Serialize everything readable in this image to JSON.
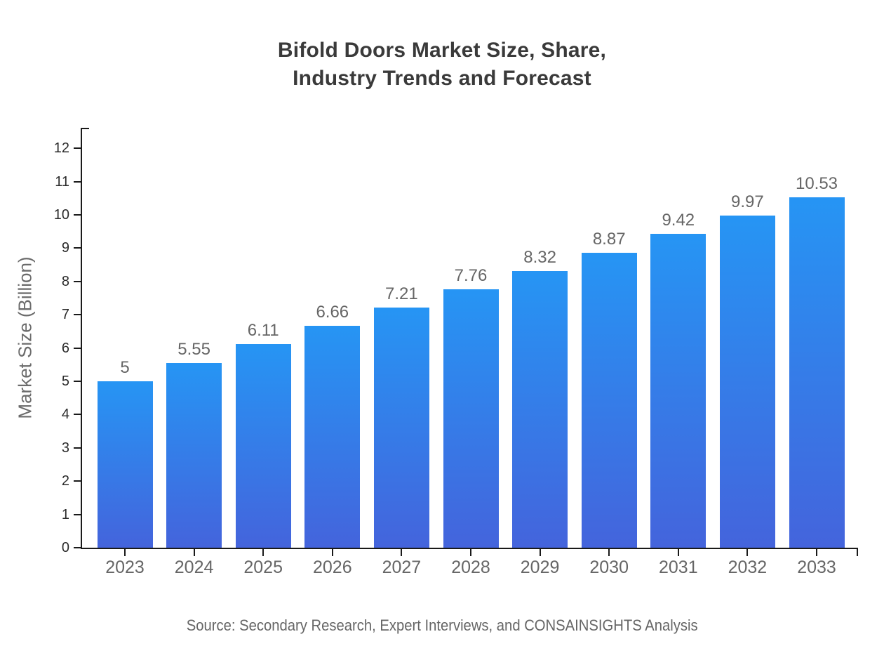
{
  "title": {
    "line1": "Bifold Doors Market Size, Share,",
    "line2": "Industry Trends and Forecast"
  },
  "source": "Source: Secondary Research, Expert Interviews, and CONSAINSIGHTS Analysis",
  "chart_data": {
    "type": "bar",
    "title": "Bifold Doors Market Size, Share, Industry Trends and Forecast",
    "categories": [
      "2023",
      "2024",
      "2025",
      "2026",
      "2027",
      "2028",
      "2029",
      "2030",
      "2031",
      "2032",
      "2033"
    ],
    "values": [
      5,
      5.55,
      6.11,
      6.66,
      7.21,
      7.76,
      8.32,
      8.87,
      9.42,
      9.97,
      10.53
    ],
    "value_labels": [
      "5",
      "5.55",
      "6.11",
      "6.66",
      "7.21",
      "7.76",
      "8.32",
      "8.87",
      "9.42",
      "9.97",
      "10.53"
    ],
    "xlabel": "",
    "ylabel": "Market Size (Billion)",
    "ylim": [
      0,
      12
    ],
    "y_ticks": [
      0,
      1,
      2,
      3,
      4,
      5,
      6,
      7,
      8,
      9,
      10,
      11,
      12
    ],
    "grid": false,
    "legend": "none",
    "colors": {
      "bar_gradient_top": "#2695f4",
      "bar_gradient_bottom": "#4464dc",
      "axis": "#1a1a1a",
      "value_label": "#666666",
      "x_tick_label": "#666666",
      "y_tick_label": "#2b2b2b",
      "title": "#3a3a3a",
      "source": "#666666"
    }
  }
}
